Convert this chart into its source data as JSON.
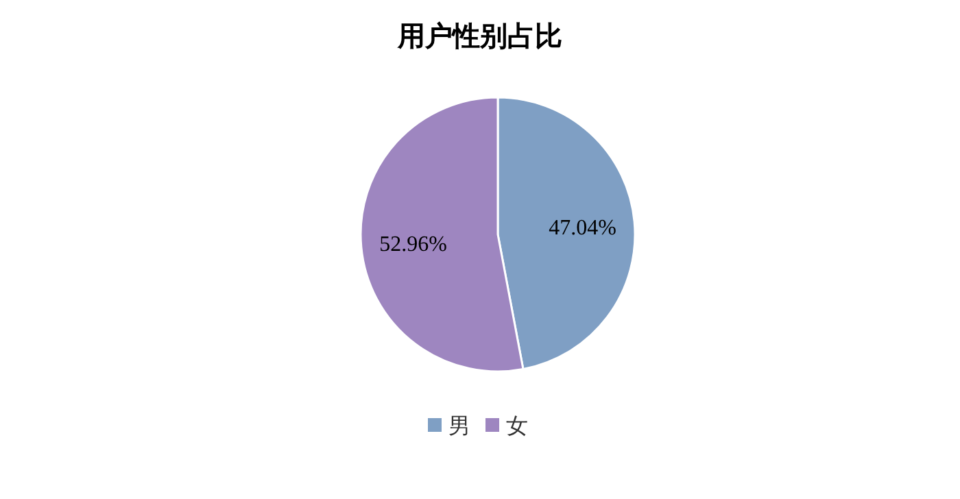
{
  "chart_data": {
    "type": "pie",
    "title": "用户性别占比",
    "categories": [
      "男",
      "女"
    ],
    "values": [
      47.04,
      52.96
    ],
    "colors": [
      "#7f9fc4",
      "#9e86c0"
    ],
    "value_labels": [
      "47.04%",
      "52.96%"
    ],
    "legend": "bottom"
  }
}
